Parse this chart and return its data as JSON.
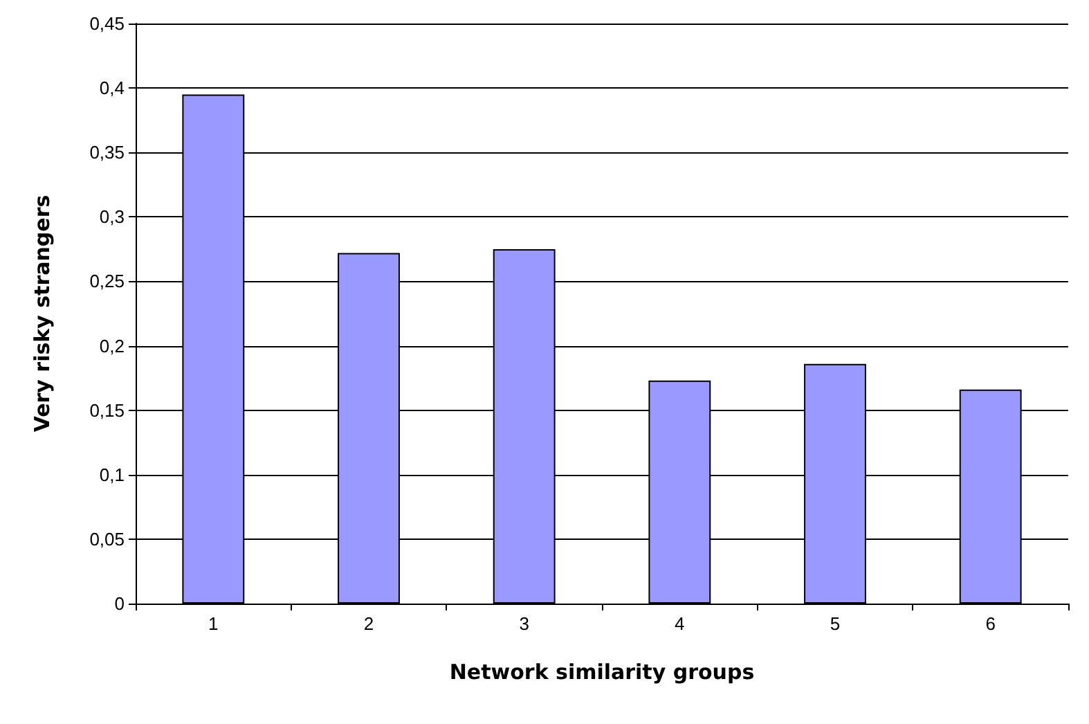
{
  "chart_data": {
    "type": "bar",
    "xlabel": "Network similarity groups",
    "ylabel": "Very risky strangers",
    "categories": [
      "1",
      "2",
      "3",
      "4",
      "5",
      "6"
    ],
    "values": [
      0.395,
      0.272,
      0.275,
      0.173,
      0.186,
      0.166
    ],
    "color": "#9999ff",
    "ylim": [
      0,
      0.45
    ],
    "yticks": [
      {
        "value": 0,
        "label": "0"
      },
      {
        "value": 0.05,
        "label": "0,05"
      },
      {
        "value": 0.1,
        "label": "0,1"
      },
      {
        "value": 0.15,
        "label": "0,15"
      },
      {
        "value": 0.2,
        "label": "0,2"
      },
      {
        "value": 0.25,
        "label": "0,25"
      },
      {
        "value": 0.3,
        "label": "0,3"
      },
      {
        "value": 0.35,
        "label": "0,35"
      },
      {
        "value": 0.4,
        "label": "0,4"
      },
      {
        "value": 0.45,
        "label": "0,45"
      }
    ],
    "grid": "y"
  }
}
